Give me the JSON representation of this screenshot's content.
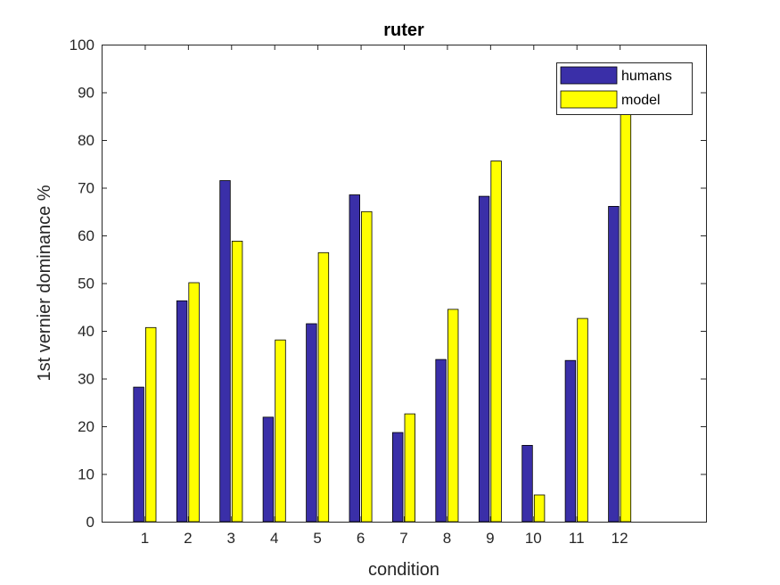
{
  "chart_data": {
    "type": "bar",
    "title": "ruter",
    "xlabel": "condition",
    "ylabel": "1st vernier dominance %",
    "categories": [
      "1",
      "2",
      "3",
      "4",
      "5",
      "6",
      "7",
      "8",
      "9",
      "10",
      "11",
      "12"
    ],
    "ylim": [
      0,
      100
    ],
    "xlim": [
      0,
      14
    ],
    "yticks": [
      0,
      10,
      20,
      30,
      40,
      50,
      60,
      70,
      80,
      90,
      100
    ],
    "series": [
      {
        "name": "humans",
        "color": "#3a2fa8",
        "values": [
          28.2,
          46.3,
          71.5,
          21.9,
          41.5,
          68.5,
          18.7,
          34.0,
          68.2,
          16.0,
          33.8,
          66.1
        ]
      },
      {
        "name": "model",
        "color": "#ffff00",
        "values": [
          40.7,
          50.1,
          58.8,
          38.1,
          56.4,
          65.0,
          22.6,
          44.5,
          75.6,
          5.6,
          42.6,
          88.0
        ]
      }
    ],
    "grid": false,
    "legend_position": "top-right"
  }
}
